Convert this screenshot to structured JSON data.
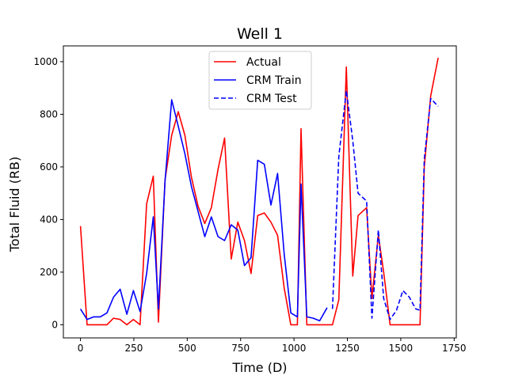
{
  "chart_data": {
    "type": "line",
    "title": "Well 1",
    "xlabel": "Time (D)",
    "ylabel": "Total Fluid (RB)",
    "xlim": [
      -80,
      1760
    ],
    "ylim": [
      -50,
      1060
    ],
    "xticks": [
      0,
      250,
      500,
      750,
      1000,
      1250,
      1500,
      1750
    ],
    "yticks": [
      0,
      200,
      400,
      600,
      800,
      1000
    ],
    "grid": false,
    "legend": "upper center",
    "series": [
      {
        "name": "Actual",
        "color": "#ff0000",
        "style": "solid",
        "x": [
          0,
          31,
          62,
          93,
          124,
          155,
          186,
          217,
          248,
          279,
          310,
          341,
          365,
          396,
          427,
          458,
          489,
          520,
          551,
          582,
          613,
          644,
          675,
          706,
          737,
          768,
          799,
          830,
          861,
          892,
          923,
          954,
          985,
          1016,
          1033,
          1060,
          1090,
          1120,
          1150,
          1180,
          1210,
          1245,
          1275,
          1300,
          1340,
          1365,
          1395,
          1420,
          1450,
          1480,
          1510,
          1540,
          1570,
          1590,
          1610,
          1640,
          1675
        ],
        "y": [
          375,
          0,
          0,
          0,
          0,
          25,
          20,
          0,
          20,
          0,
          460,
          565,
          10,
          550,
          720,
          810,
          720,
          560,
          450,
          385,
          445,
          590,
          710,
          250,
          390,
          320,
          195,
          415,
          425,
          390,
          340,
          140,
          0,
          0,
          745,
          0,
          0,
          0,
          0,
          0,
          95,
          980,
          185,
          415,
          445,
          100,
          340,
          200,
          0,
          0,
          0,
          0,
          0,
          0,
          600,
          870,
          1015
        ]
      },
      {
        "name": "CRM Train",
        "color": "#0000ff",
        "style": "solid",
        "x": [
          0,
          31,
          62,
          93,
          124,
          155,
          186,
          217,
          248,
          279,
          310,
          341,
          365,
          396,
          427,
          458,
          489,
          520,
          551,
          582,
          613,
          644,
          675,
          706,
          737,
          768,
          799,
          830,
          861,
          892,
          923,
          954,
          985,
          1016,
          1033,
          1060,
          1090,
          1120,
          1155
        ],
        "y": [
          60,
          20,
          30,
          30,
          45,
          105,
          135,
          40,
          130,
          50,
          195,
          410,
          60,
          545,
          855,
          755,
          650,
          525,
          430,
          335,
          410,
          335,
          320,
          380,
          360,
          225,
          255,
          625,
          610,
          455,
          575,
          270,
          45,
          30,
          535,
          30,
          25,
          15,
          65
        ]
      },
      {
        "name": "CRM Test",
        "color": "#0000ff",
        "style": "dashed",
        "x": [
          1180,
          1210,
          1245,
          1275,
          1300,
          1340,
          1365,
          1395,
          1420,
          1450,
          1480,
          1510,
          1540,
          1570,
          1590,
          1610,
          1640,
          1675
        ],
        "y": [
          60,
          640,
          890,
          700,
          500,
          470,
          25,
          360,
          100,
          20,
          55,
          130,
          105,
          60,
          55,
          630,
          860,
          830
        ]
      }
    ]
  }
}
